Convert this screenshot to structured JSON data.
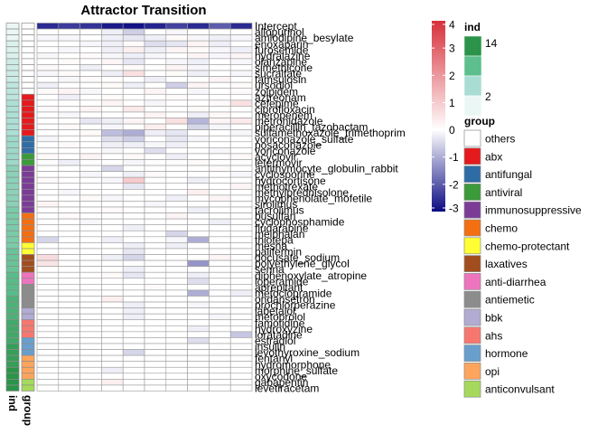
{
  "chart_data": {
    "type": "heatmap",
    "title": "Attractor Transition",
    "columns": 10,
    "rows": [
      "Intercept",
      "allopurinol",
      "amlodipine_besylate",
      "enoxaparin",
      "furosemide",
      "hydralazine",
      "olanzapine",
      "simethicone",
      "sucralfate",
      "tamsulosin",
      "ursodiol",
      "zolpidem",
      "aztreonam",
      "cefepime",
      "ciprofloxacin",
      "meropenem",
      "metronidazole",
      "piperacillin_tazobactam",
      "sulfamethoxazole_trimethoprim",
      "voriconazole_sulfate",
      "posaconazole",
      "voriconazole",
      "acyclovir",
      "letermovir",
      "antithymocyte_globulin_rabbit",
      "cyclosporine",
      "hydrocortisone",
      "methotrexate",
      "methylprednisolone",
      "mycophenolate_mofetile",
      "sirolimus",
      "tacrolimus",
      "busulfan",
      "cyclophosphamide",
      "fludarabine",
      "melphalan",
      "thiotepa",
      "mesna",
      "palifermin",
      "docusate_sodium",
      "polyethylene_glycol",
      "senna",
      "diphenoxylate_atropine",
      "loperamide",
      "aprepitant",
      "metoclopramide",
      "ondansetron",
      "prochlorperazine",
      "labetalol",
      "metoprolol",
      "famotidine",
      "hydroxyzine",
      "loratadine",
      "estradiol",
      "insulin",
      "levothyroxine_sodium",
      "fentanyl",
      "hydromorphone",
      "morphine_sulfate",
      "oxycodone",
      "gabapentin",
      "levetiracetam"
    ],
    "row_groups": [
      "others",
      "others",
      "others",
      "others",
      "others",
      "others",
      "others",
      "others",
      "others",
      "others",
      "others",
      "others",
      "abx",
      "abx",
      "abx",
      "abx",
      "abx",
      "abx",
      "abx",
      "antifungal",
      "antifungal",
      "antifungal",
      "antiviral",
      "antiviral",
      "immunosuppressive",
      "immunosuppressive",
      "immunosuppressive",
      "immunosuppressive",
      "immunosuppressive",
      "immunosuppressive",
      "immunosuppressive",
      "immunosuppressive",
      "chemo",
      "chemo",
      "chemo",
      "chemo",
      "chemo",
      "chemo-protectant",
      "chemo-protectant",
      "laxatives",
      "laxatives",
      "laxatives",
      "anti-diarrhea",
      "anti-diarrhea",
      "antiemetic",
      "antiemetic",
      "antiemetic",
      "antiemetic",
      "bbk",
      "bbk",
      "ahs",
      "ahs",
      "ahs",
      "hormone",
      "hormone",
      "hormone",
      "opi",
      "opi",
      "opi",
      "opi",
      "anticonvulsant",
      "anticonvulsant"
    ],
    "row_ind": [
      1,
      1,
      1,
      2,
      2,
      2,
      3,
      3,
      3,
      3,
      4,
      4,
      4,
      5,
      5,
      5,
      5,
      5,
      5,
      6,
      6,
      6,
      6,
      6,
      7,
      7,
      7,
      7,
      7,
      7,
      7,
      8,
      8,
      8,
      8,
      8,
      8,
      8,
      9,
      9,
      9,
      9,
      10,
      10,
      10,
      10,
      11,
      11,
      11,
      11,
      12,
      12,
      12,
      12,
      13,
      13,
      13,
      13,
      14,
      14,
      14,
      14
    ],
    "values": [
      [
        -2.6,
        -2.4,
        -2.5,
        -2.8,
        -2.9,
        -2.7,
        -2.3,
        -2.6,
        -2.0,
        -2.6
      ],
      [
        0.0,
        0.0,
        0.0,
        -0.2,
        -0.6,
        0.0,
        -0.1,
        0.0,
        0.0,
        0.0
      ],
      [
        -0.1,
        -0.1,
        0.0,
        -0.2,
        -0.3,
        -0.2,
        0.1,
        -0.1,
        -0.2,
        -0.1
      ],
      [
        0.0,
        0.0,
        -0.1,
        -0.2,
        0.1,
        -0.4,
        -0.3,
        0.2,
        -0.2,
        0.0
      ],
      [
        0.0,
        -0.1,
        0.0,
        -0.2,
        0.3,
        -0.2,
        0.2,
        0.1,
        -0.1,
        -0.2
      ],
      [
        -0.1,
        0.0,
        0.1,
        -0.1,
        -0.2,
        -0.1,
        0.0,
        0.2,
        -0.1,
        0.2
      ],
      [
        0.0,
        0.1,
        0.0,
        0.2,
        -0.3,
        0.0,
        -0.1,
        -0.2,
        0.0,
        -0.1
      ],
      [
        0.1,
        0.0,
        -0.2,
        0.0,
        0.1,
        0.0,
        0.2,
        -0.1,
        0.0,
        0.0
      ],
      [
        -0.1,
        0.1,
        0.0,
        -0.2,
        0.6,
        0.0,
        0.1,
        -0.2,
        0.0,
        -0.1
      ],
      [
        0.0,
        -0.1,
        0.1,
        0.0,
        0.0,
        -0.2,
        0.0,
        0.0,
        0.2,
        0.0
      ],
      [
        -0.2,
        0.0,
        0.0,
        0.1,
        -0.2,
        0.0,
        -0.6,
        0.2,
        0.0,
        0.1
      ],
      [
        0.1,
        0.2,
        -0.1,
        0.0,
        0.0,
        0.2,
        0.0,
        -0.1,
        0.0,
        0.1
      ],
      [
        0.0,
        -0.2,
        0.0,
        0.1,
        0.0,
        0.0,
        0.1,
        0.0,
        0.0,
        0.0
      ],
      [
        0.0,
        0.0,
        0.0,
        0.2,
        0.0,
        -0.1,
        0.0,
        0.0,
        0.1,
        0.6
      ],
      [
        0.1,
        0.0,
        0.2,
        0.0,
        0.4,
        0.0,
        0.0,
        0.1,
        0.0,
        0.0
      ],
      [
        0.0,
        -0.1,
        0.0,
        0.0,
        0.0,
        0.2,
        0.0,
        -0.2,
        0.1,
        0.0
      ],
      [
        0.0,
        0.0,
        -0.3,
        -0.2,
        0.2,
        0.0,
        0.6,
        -0.9,
        0.2,
        0.4
      ],
      [
        0.0,
        0.1,
        0.0,
        -0.1,
        0.0,
        0.3,
        0.0,
        -0.5,
        -0.1,
        0.0
      ],
      [
        0.0,
        0.0,
        0.1,
        -0.8,
        -1.0,
        -0.2,
        -0.3,
        0.0,
        0.0,
        -0.1
      ],
      [
        -0.1,
        0.0,
        0.0,
        -0.4,
        -0.6,
        0.0,
        -0.3,
        -0.1,
        0.0,
        0.0
      ],
      [
        0.0,
        0.1,
        0.0,
        -0.2,
        -0.2,
        -0.1,
        -0.2,
        0.0,
        0.0,
        0.0
      ],
      [
        0.0,
        0.0,
        0.0,
        -0.1,
        0.0,
        -0.4,
        0.0,
        0.0,
        -0.1,
        0.0
      ],
      [
        0.1,
        0.0,
        0.2,
        0.0,
        0.1,
        0.0,
        -0.2,
        0.0,
        0.0,
        0.1
      ],
      [
        0.0,
        -0.2,
        0.0,
        0.0,
        -0.1,
        0.0,
        0.0,
        0.1,
        0.0,
        0.0
      ],
      [
        0.0,
        0.0,
        0.0,
        -0.5,
        0.0,
        0.0,
        0.0,
        0.0,
        0.1,
        0.0
      ],
      [
        0.0,
        0.0,
        -0.1,
        0.0,
        -0.2,
        0.1,
        0.0,
        0.0,
        0.0,
        -0.1
      ],
      [
        0.1,
        0.0,
        0.0,
        -0.1,
        1.0,
        0.0,
        0.0,
        -0.2,
        0.0,
        0.0
      ],
      [
        0.0,
        0.0,
        0.0,
        0.0,
        -0.3,
        0.0,
        0.0,
        0.0,
        0.0,
        0.2
      ],
      [
        0.0,
        -0.1,
        0.0,
        0.0,
        0.0,
        0.0,
        0.0,
        0.3,
        0.0,
        0.0
      ],
      [
        0.0,
        0.0,
        0.1,
        -0.1,
        0.0,
        0.0,
        -0.2,
        0.0,
        0.2,
        0.0
      ],
      [
        0.2,
        0.0,
        0.0,
        0.0,
        0.0,
        -0.1,
        0.0,
        0.0,
        0.0,
        0.0
      ],
      [
        0.0,
        0.0,
        0.0,
        0.1,
        0.0,
        0.0,
        0.0,
        -0.2,
        0.0,
        0.0
      ],
      [
        0.0,
        0.1,
        0.0,
        0.0,
        0.0,
        0.0,
        0.2,
        0.0,
        0.0,
        0.0
      ],
      [
        0.0,
        0.0,
        -0.1,
        0.0,
        0.0,
        0.0,
        0.0,
        0.0,
        -0.2,
        0.0
      ],
      [
        0.0,
        0.0,
        0.0,
        0.0,
        -0.2,
        0.0,
        0.0,
        0.0,
        0.0,
        0.0
      ],
      [
        0.0,
        0.0,
        0.0,
        0.0,
        0.0,
        0.0,
        -0.5,
        0.0,
        0.0,
        0.0
      ],
      [
        -0.5,
        0.0,
        0.0,
        -0.2,
        0.0,
        0.0,
        -0.1,
        -1.0,
        0.0,
        0.0
      ],
      [
        0.0,
        0.0,
        0.0,
        0.0,
        -0.2,
        0.0,
        -0.2,
        0.0,
        0.0,
        0.0
      ],
      [
        0.0,
        0.0,
        0.0,
        0.0,
        -0.3,
        0.0,
        0.0,
        0.0,
        0.0,
        0.0
      ],
      [
        0.7,
        0.0,
        0.0,
        -0.2,
        -0.5,
        0.0,
        0.0,
        0.0,
        0.2,
        0.0
      ],
      [
        0.5,
        0.0,
        0.0,
        0.0,
        0.0,
        0.0,
        0.0,
        -1.3,
        0.0,
        0.0
      ],
      [
        0.0,
        0.0,
        0.0,
        0.0,
        -0.2,
        0.0,
        0.0,
        0.0,
        0.0,
        0.0
      ],
      [
        0.0,
        0.0,
        0.0,
        0.1,
        -0.3,
        0.0,
        0.0,
        -0.2,
        0.0,
        0.0
      ],
      [
        0.0,
        0.0,
        0.0,
        0.0,
        0.0,
        0.0,
        0.0,
        -0.4,
        0.0,
        0.0
      ],
      [
        0.0,
        0.0,
        0.0,
        0.0,
        0.0,
        0.1,
        0.0,
        0.0,
        0.0,
        0.0
      ],
      [
        0.0,
        0.0,
        0.0,
        0.0,
        0.0,
        0.0,
        0.0,
        -1.0,
        0.0,
        -0.2
      ],
      [
        0.0,
        0.0,
        0.0,
        0.3,
        0.0,
        0.0,
        0.0,
        0.0,
        0.0,
        0.0
      ],
      [
        0.0,
        0.0,
        0.0,
        0.0,
        -0.2,
        0.0,
        0.0,
        -0.1,
        0.0,
        0.0
      ],
      [
        0.0,
        0.0,
        0.0,
        0.0,
        -0.2,
        0.0,
        0.0,
        0.0,
        0.0,
        0.0
      ],
      [
        0.0,
        0.0,
        0.0,
        0.0,
        -0.2,
        0.0,
        0.0,
        0.0,
        -0.1,
        0.0
      ],
      [
        0.0,
        0.0,
        0.0,
        0.0,
        0.0,
        0.0,
        0.0,
        0.0,
        0.0,
        0.0
      ],
      [
        0.0,
        0.0,
        0.0,
        0.0,
        0.0,
        0.0,
        0.0,
        -0.2,
        0.0,
        0.0
      ],
      [
        0.0,
        0.0,
        0.0,
        0.0,
        0.0,
        0.0,
        0.0,
        0.0,
        0.0,
        -0.7
      ],
      [
        0.0,
        0.0,
        0.0,
        0.0,
        0.0,
        0.0,
        0.0,
        -0.4,
        0.0,
        0.0
      ],
      [
        0.0,
        0.0,
        0.0,
        0.0,
        0.0,
        0.0,
        0.0,
        0.0,
        0.0,
        0.0
      ],
      [
        0.0,
        0.0,
        0.0,
        0.0,
        -0.5,
        0.0,
        0.0,
        0.0,
        0.0,
        0.0
      ],
      [
        0.0,
        0.0,
        0.0,
        0.0,
        0.0,
        0.0,
        0.0,
        0.0,
        0.0,
        0.0
      ],
      [
        0.0,
        0.0,
        0.0,
        0.0,
        0.0,
        0.0,
        0.0,
        0.0,
        0.0,
        0.0
      ],
      [
        0.0,
        0.0,
        0.0,
        -0.2,
        0.0,
        0.0,
        0.0,
        0.0,
        0.0,
        0.0
      ],
      [
        0.0,
        0.0,
        0.0,
        0.0,
        0.0,
        0.0,
        0.0,
        0.0,
        0.0,
        0.0
      ],
      [
        0.0,
        0.0,
        0.0,
        0.3,
        0.0,
        0.0,
        0.0,
        0.0,
        0.0,
        0.0
      ],
      [
        0.0,
        0.0,
        0.0,
        0.0,
        0.0,
        0.0,
        0.0,
        0.0,
        0.0,
        0.0
      ]
    ],
    "color_scale": {
      "min": -3,
      "max": 4,
      "ticks": [
        4,
        3,
        2,
        1,
        0,
        -1,
        -2,
        -3
      ],
      "low": "#0a0a82",
      "mid": "#ffffff",
      "high": "#d7303a"
    },
    "legend_ind": {
      "title": "ind",
      "range": [
        1,
        14
      ],
      "labels": [
        14,
        2
      ],
      "colors": [
        "#eaf7f4",
        "#a9ddd3",
        "#5cbf8d",
        "#2b944a"
      ]
    },
    "legend_group": {
      "title": "group",
      "items": [
        {
          "name": "others",
          "color": "#ffffff"
        },
        {
          "name": "abx",
          "color": "#e41a1c"
        },
        {
          "name": "antifungal",
          "color": "#2e6ca6"
        },
        {
          "name": "antiviral",
          "color": "#3b9a3a"
        },
        {
          "name": "immunosuppressive",
          "color": "#7b3c96"
        },
        {
          "name": "chemo",
          "color": "#f36f12"
        },
        {
          "name": "chemo-protectant",
          "color": "#ffff33"
        },
        {
          "name": "laxatives",
          "color": "#a24d1e"
        },
        {
          "name": "anti-diarrhea",
          "color": "#ee74be"
        },
        {
          "name": "antiemetic",
          "color": "#8c8c8c"
        },
        {
          "name": "bbk",
          "color": "#b2abd2"
        },
        {
          "name": "ahs",
          "color": "#f7776f"
        },
        {
          "name": "hormone",
          "color": "#699fcd"
        },
        {
          "name": "opi",
          "color": "#fda55c"
        },
        {
          "name": "anticonvulsant",
          "color": "#a6d95b"
        }
      ]
    },
    "annotation_labels": [
      "ind",
      "group"
    ]
  }
}
